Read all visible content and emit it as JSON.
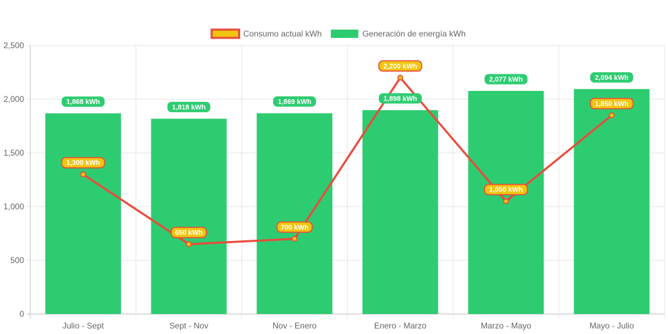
{
  "chart_data": {
    "type": "bar",
    "categories": [
      "Julio - Sept",
      "Sept - Nov",
      "Nov - Enero",
      "Enero - Marzo",
      "Marzo - Mayo",
      "Mayo - Julio"
    ],
    "series": [
      {
        "name": "Consumo actual kWh",
        "type": "line",
        "values": [
          1300,
          650,
          700,
          2200,
          1050,
          1850
        ],
        "labels": [
          "1,300 kWh",
          "650 kWh",
          "700 kWh",
          "2,200 kWh",
          "1,050 kWh",
          "1,850 kWh"
        ],
        "color": "#e74c3c",
        "fill_color": "#f1c40f"
      },
      {
        "name": "Generación de energía kWh",
        "type": "bar",
        "values": [
          1868,
          1818,
          1869,
          1898,
          2077,
          2094
        ],
        "labels": [
          "1,868 kWh",
          "1,818 kWh",
          "1,869 kWh",
          "1,898 kWh",
          "2,077 kWh",
          "2,094 kWh"
        ],
        "color": "#2ecc71"
      }
    ],
    "ylim": [
      0,
      2500
    ],
    "yticks": [
      0,
      500,
      1000,
      1500,
      2000,
      2500
    ],
    "ytick_labels": [
      "0",
      "500",
      "1,000",
      "1,500",
      "2,000",
      "2,500"
    ],
    "grid": true,
    "legend_position": "top"
  }
}
